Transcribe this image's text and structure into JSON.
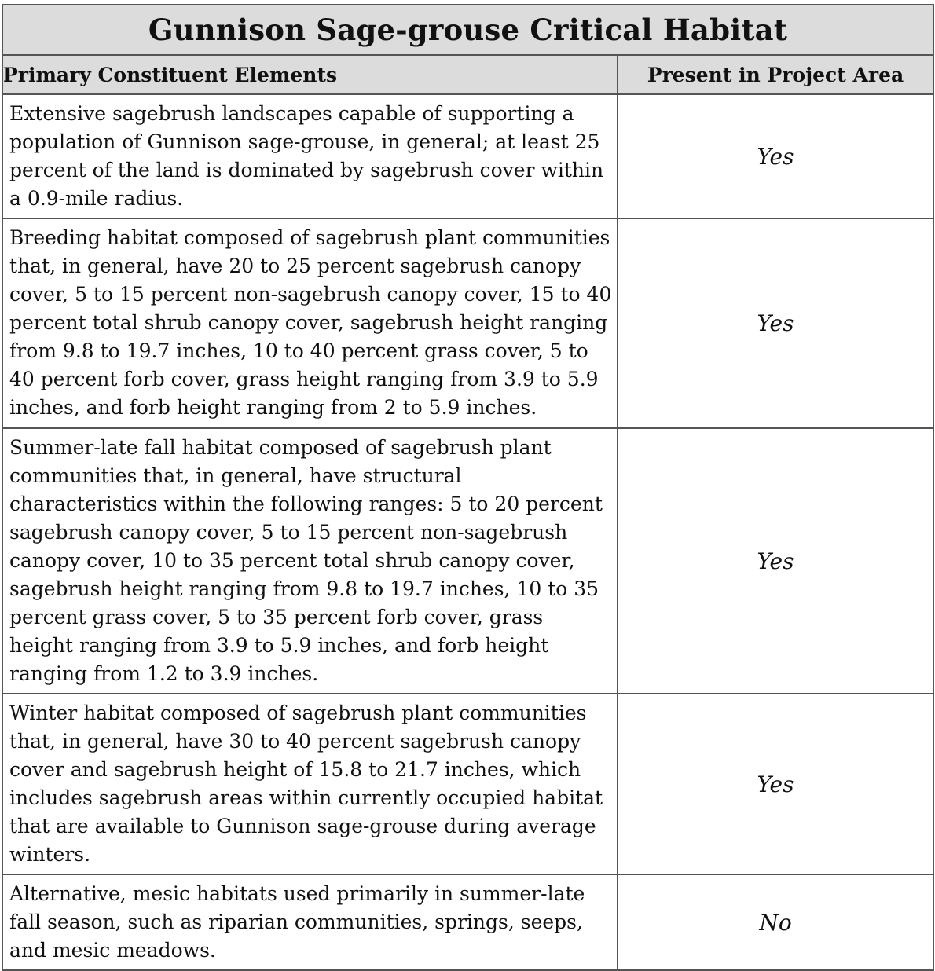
{
  "table": {
    "title": "Gunnison Sage-grouse Critical Habitat",
    "headers": {
      "element": "Primary Constituent Elements",
      "present": "Present in Project Area"
    },
    "rows": [
      {
        "description": "Extensive sagebrush landscapes capable of supporting a population of Gunnison sage-grouse, in general; at least 25 percent of the land is dominated by sagebrush cover within a 0.9-mile radius.",
        "present": "Yes"
      },
      {
        "description": "Breeding habitat composed of sagebrush plant communities that, in general, have 20 to 25 percent sagebrush canopy cover, 5 to 15 percent non-sagebrush canopy cover, 15 to 40 percent total shrub canopy cover, sagebrush height ranging from 9.8 to 19.7 inches, 10 to 40 percent grass cover, 5 to 40 percent forb cover, grass height ranging from 3.9 to 5.9 inches, and forb height ranging from 2 to 5.9 inches.",
        "present": "Yes"
      },
      {
        "description": "Summer-late fall habitat composed of sagebrush plant communities that, in general, have structural characteristics within the following ranges: 5 to 20 percent sagebrush canopy cover, 5 to 15 percent non-sagebrush canopy cover, 10 to 35 percent total shrub canopy cover, sagebrush height ranging from 9.8 to 19.7 inches, 10 to 35 percent grass cover, 5 to 35 percent forb cover, grass height ranging from 3.9 to 5.9 inches, and forb height ranging from 1.2 to 3.9 inches.",
        "present": "Yes"
      },
      {
        "description": "Winter habitat composed of sagebrush plant communities that, in general, have 30 to 40 percent sagebrush canopy cover and sagebrush height of 15.8 to 21.7 inches, which includes sagebrush areas within currently occupied habitat that are available to Gunnison sage-grouse during average winters.",
        "present": "Yes"
      },
      {
        "description": "Alternative, mesic habitats used primarily in summer-late fall season, such as riparian communities, springs, seeps, and mesic meadows.",
        "present": "No"
      }
    ]
  }
}
